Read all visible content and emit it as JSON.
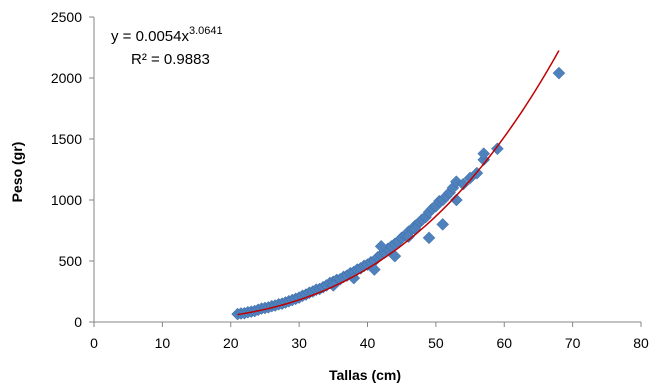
{
  "colors": {
    "marker": "#4F81BD",
    "marker_stroke": "#3A6AA5",
    "trendline": "#C00000",
    "axis": "#868686"
  },
  "chart_data": {
    "type": "scatter",
    "title": "",
    "xlabel": "Tallas (cm)",
    "ylabel": "Peso (gr)",
    "xlim": [
      0,
      80
    ],
    "ylim": [
      0,
      2500
    ],
    "xticks": [
      0,
      10,
      20,
      30,
      40,
      50,
      60,
      70,
      80
    ],
    "yticks": [
      0,
      500,
      1000,
      1500,
      2000,
      2500
    ],
    "grid": false,
    "legend": "none",
    "marker": "diamond",
    "trendline": {
      "type": "power",
      "a": 0.0054,
      "b": 3.0641,
      "x_range": [
        21,
        68
      ],
      "equation_prefix": "y = 0.0054x",
      "equation_exponent": "3.0641",
      "r2_label": "R² = 0.9883"
    },
    "series": [
      {
        "x": [
          21,
          21.5,
          22,
          22.5,
          23,
          23.5,
          24,
          24.5,
          25,
          25.5,
          26,
          26.5,
          27,
          27.5,
          28,
          28.5,
          29,
          29.5,
          30,
          30.5,
          31,
          31.5,
          32,
          32.5,
          33,
          33.5,
          34,
          34.5,
          35,
          35.5,
          36,
          36.5,
          37,
          37.5,
          38,
          38.5,
          39,
          39.5,
          40,
          40.5,
          41,
          41.5,
          42,
          42.5,
          43,
          43.5,
          44,
          44.5,
          45,
          45.5,
          46,
          46.5,
          47,
          47.5,
          48,
          48.5,
          49,
          49.5,
          50,
          50.5,
          51,
          51.5,
          52,
          52.5,
          53,
          54,
          55,
          56,
          57,
          57,
          59,
          68,
          35,
          38,
          41,
          42,
          44,
          46,
          47,
          49,
          51,
          53
        ],
        "y": [
          65,
          70,
          72,
          80,
          85,
          90,
          100,
          110,
          115,
          120,
          130,
          135,
          145,
          150,
          160,
          170,
          180,
          190,
          200,
          215,
          225,
          240,
          250,
          265,
          270,
          285,
          300,
          320,
          330,
          345,
          350,
          370,
          380,
          400,
          410,
          430,
          440,
          460,
          470,
          490,
          500,
          530,
          550,
          570,
          600,
          620,
          640,
          660,
          690,
          710,
          740,
          760,
          790,
          810,
          840,
          860,
          900,
          930,
          950,
          990,
          1000,
          1030,
          1060,
          1100,
          1150,
          1130,
          1180,
          1220,
          1330,
          1380,
          1420,
          2040,
          300,
          360,
          430,
          620,
          540,
          700,
          760,
          690,
          800,
          1000
        ]
      }
    ]
  }
}
